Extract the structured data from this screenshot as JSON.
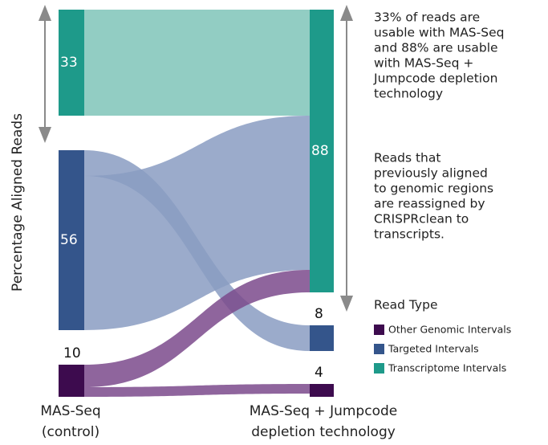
{
  "chart_data": {
    "type": "sankey",
    "y_label": "Percentage Aligned Reads",
    "categories": [
      {
        "name": "Other Genomic Intervals",
        "color": "#3d0b4e",
        "flow_color": "#7b4a8c"
      },
      {
        "name": "Targeted Intervals",
        "color": "#34558b",
        "flow_color": "#8a9cc2"
      },
      {
        "name": "Transcriptome Intervals",
        "color": "#1e9a8a",
        "flow_color": "#7fc4b9"
      }
    ],
    "columns": [
      {
        "label": [
          "MAS-Seq",
          "(control)"
        ],
        "nodes": [
          {
            "category": 2,
            "value": 33
          },
          {
            "category": 1,
            "value": 56
          },
          {
            "category": 0,
            "value": 10
          }
        ]
      },
      {
        "label": [
          "MAS-Seq + Jumpcode",
          "depletion technology"
        ],
        "nodes": [
          {
            "category": 2,
            "value": 88
          },
          {
            "category": 1,
            "value": 8
          },
          {
            "category": 0,
            "value": 4
          }
        ]
      }
    ],
    "flows": [
      {
        "from": 0,
        "to": 0,
        "value": 33
      },
      {
        "from": 1,
        "to": 1,
        "value": 8
      },
      {
        "from": 1,
        "to": 0,
        "value": 48
      },
      {
        "from": 2,
        "to": 0,
        "value": 7
      },
      {
        "from": 2,
        "to": 2,
        "value": 3
      }
    ],
    "annotations": [
      [
        "33% of reads are",
        "usable with MAS-Seq",
        "and 88% are usable",
        "with MAS-Seq +",
        "Jumpcode depletion",
        "technology"
      ],
      [
        "Reads that",
        "previously aligned",
        "to genomic regions",
        "are reassigned by",
        "CRISPRclean to",
        "transcripts."
      ]
    ],
    "legend_title": "Read Type"
  }
}
